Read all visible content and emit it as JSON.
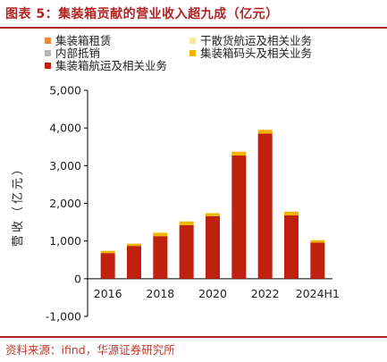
{
  "figure_title": "图表 5：集装箱贡献的营业收入超九成（亿元）",
  "source": "资料来源：ifind，华源证券研究所",
  "chart_data": {
    "type": "bar",
    "stacked": true,
    "categories": [
      "2016",
      "2017",
      "2018",
      "2019",
      "2020",
      "2021",
      "2022",
      "2023",
      "2024H1"
    ],
    "x_tick_labels": [
      "2016",
      "2018",
      "2020",
      "2022",
      "2024H1"
    ],
    "ylabel": "营收（亿元）",
    "ylim": [
      -1000,
      5000
    ],
    "yticks": [
      -1000,
      0,
      1000,
      2000,
      3000,
      4000,
      5000
    ],
    "ytick_labels": [
      "-1,000",
      "0",
      "1,000",
      "2,000",
      "3,000",
      "4,000",
      "5,000"
    ],
    "legend_placement": "top",
    "grid": false,
    "series": [
      {
        "name": "集装箱航运及相关业务",
        "color": "#c0200e",
        "values": [
          680,
          870,
          1130,
          1420,
          1660,
          3270,
          3850,
          1680,
          960
        ]
      },
      {
        "name": "集装箱码头及相关业务",
        "color": "#f0b400",
        "values": [
          60,
          60,
          90,
          100,
          80,
          100,
          100,
          100,
          60
        ]
      },
      {
        "name": "干散货航运及相关业务",
        "color": "#f6e79a",
        "values": [
          0,
          0,
          0,
          0,
          0,
          0,
          0,
          0,
          0
        ]
      },
      {
        "name": "内部抵销",
        "color": "#b7b7b7",
        "values": [
          0,
          0,
          0,
          0,
          0,
          0,
          0,
          0,
          0
        ]
      },
      {
        "name": "集装箱租赁",
        "color": "#e98a3a",
        "values": [
          0,
          0,
          0,
          0,
          0,
          0,
          0,
          0,
          0
        ]
      }
    ]
  },
  "legend": {
    "items": [
      {
        "label": "集装箱租赁",
        "color": "#e98a3a"
      },
      {
        "label": "干散货航运及相关业务",
        "color": "#f6e79a"
      },
      {
        "label": "内部抵销",
        "color": "#b7b7b7"
      },
      {
        "label": "集装箱码头及相关业务",
        "color": "#f0b400"
      },
      {
        "label": "集装箱航运及相关业务",
        "color": "#c0200e"
      }
    ]
  }
}
